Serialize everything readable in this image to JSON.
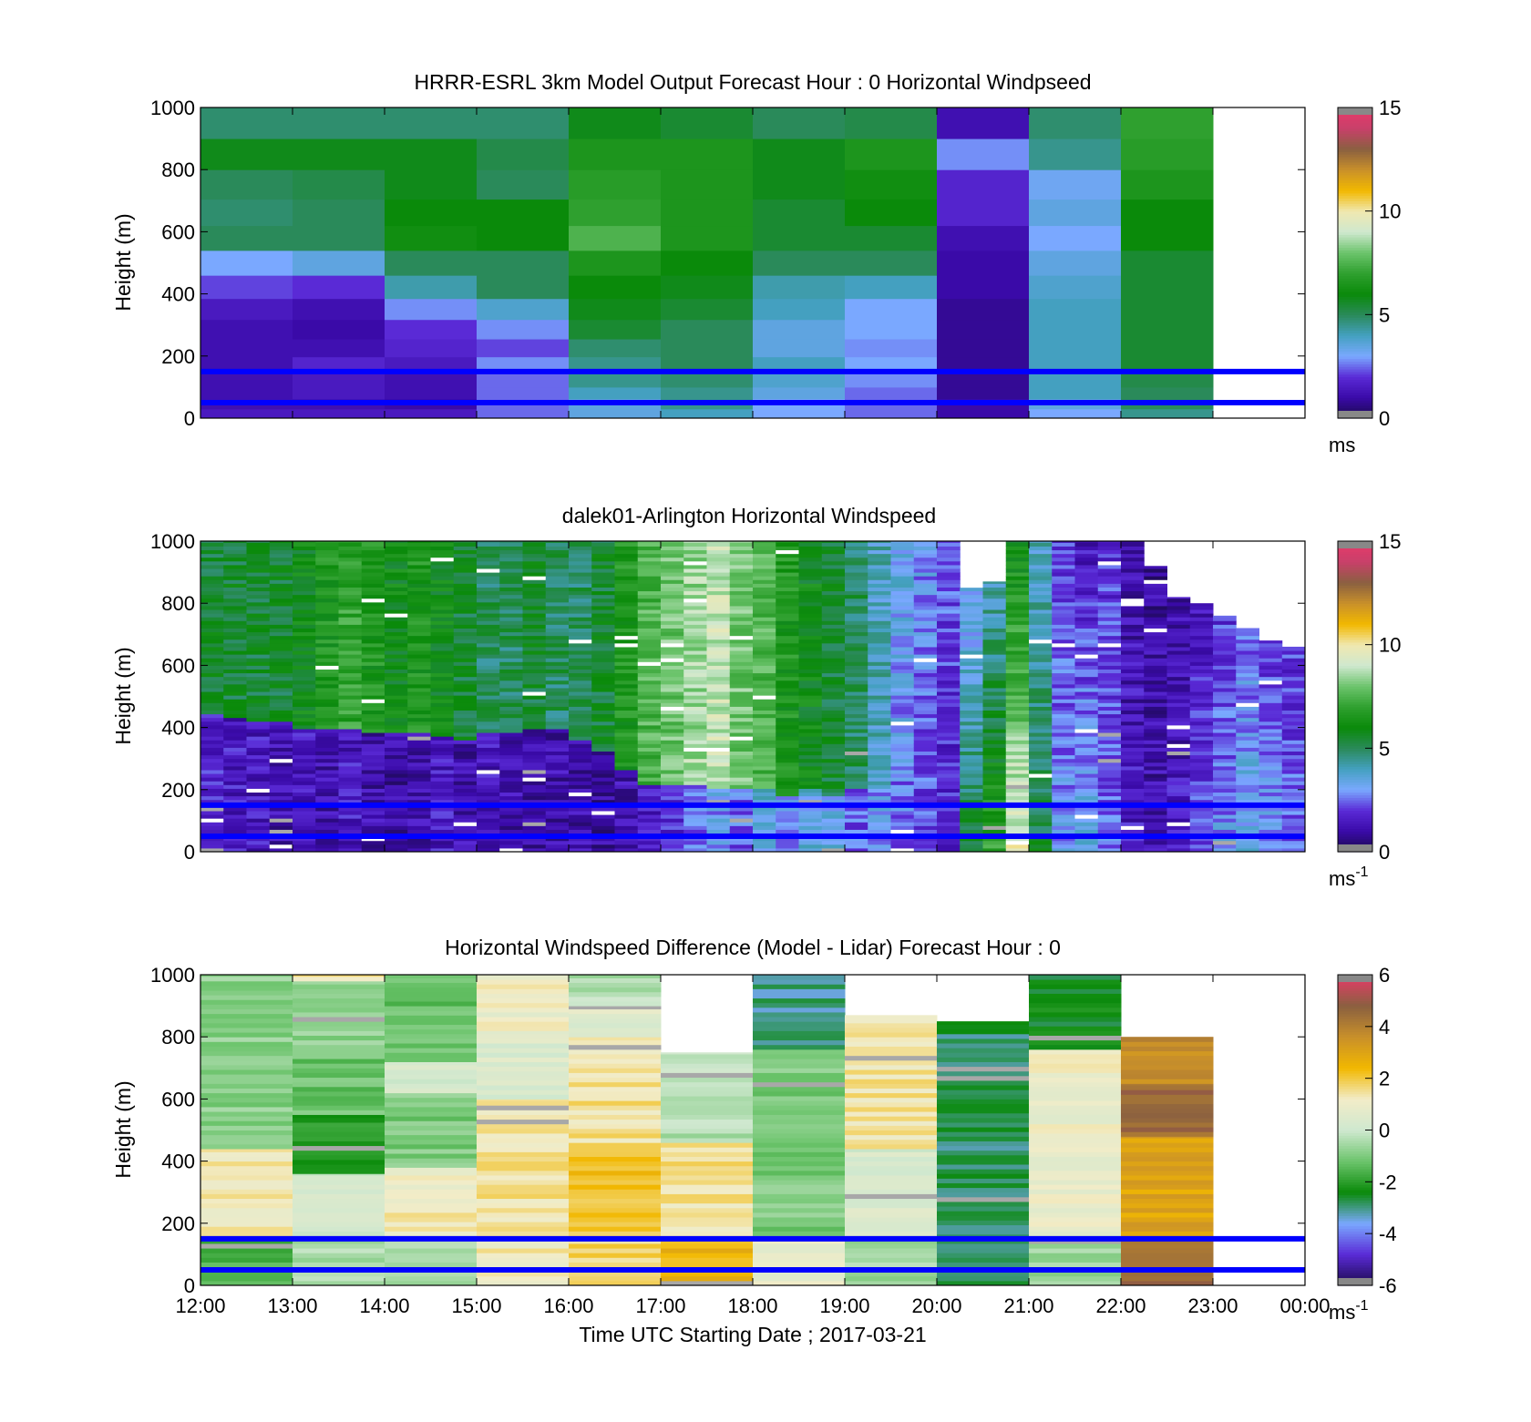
{
  "colors": {
    "wind_ramp": [
      "#1a0a4a",
      "#3a0aa8",
      "#5a2ad6",
      "#7aa8ff",
      "#44a0c0",
      "#2a8a5a",
      "#0a8a0a",
      "#2fa02f",
      "#6cc46c",
      "#cfe8cf",
      "#f0e8b0",
      "#f2b800",
      "#c9902a",
      "#8a6040",
      "#c8406a",
      "#e83a6a"
    ],
    "diff_ramp": [
      "#1a0a4a",
      "#5a2ad6",
      "#7aa8ff",
      "#0a8a0a",
      "#6cc46c",
      "#cfe8cf",
      "#f2ecc8",
      "#f2b800",
      "#c9902a",
      "#8a6040",
      "#e83a6a"
    ],
    "overlay_lines": "#0000ff",
    "nan_gray": "#a8a8a8"
  },
  "time_ticks": [
    "12:00",
    "13:00",
    "14:00",
    "15:00",
    "16:00",
    "17:00",
    "18:00",
    "19:00",
    "20:00",
    "21:00",
    "22:00",
    "23:00",
    "00:00"
  ],
  "x_label": "Time UTC  Starting Date ; 2017-03-21",
  "chart_data": [
    {
      "type": "heatmap",
      "title": "HRRR-ESRL 3km Model Output   Forecast Hour : 0 Horizontal Windpseed",
      "ylabel": "Height (m)",
      "ylim": [
        0,
        1000
      ],
      "yticks": [
        "0",
        "200",
        "400",
        "600",
        "800",
        "1000"
      ],
      "colorbar": {
        "clim": [
          0,
          15
        ],
        "ticks": [
          "0",
          "5",
          "10",
          "15"
        ],
        "unit": "ms"
      },
      "blue_lines_m": [
        50,
        150
      ],
      "heights_m": [
        15,
        45,
        80,
        120,
        170,
        225,
        285,
        350,
        420,
        500,
        580,
        660,
        750,
        850,
        950
      ],
      "hours": [
        "12:00",
        "13:00",
        "14:00",
        "15:00",
        "16:00",
        "17:00",
        "18:00",
        "19:00",
        "20:00",
        "21:00",
        "22:00"
      ],
      "values": [
        [
          1.5,
          1.5,
          1.5,
          2.5,
          3.5,
          4.0,
          3.0,
          2.5,
          1.0,
          3.0,
          4.5
        ],
        [
          1.2,
          1.2,
          1.0,
          2.5,
          3.5,
          4.5,
          3.0,
          2.5,
          1.0,
          3.5,
          5.0
        ],
        [
          1.2,
          1.5,
          1.2,
          2.5,
          4.0,
          4.5,
          3.5,
          2.5,
          0.8,
          4.0,
          5.0
        ],
        [
          1.2,
          1.5,
          1.2,
          2.5,
          4.5,
          4.8,
          3.8,
          2.8,
          0.8,
          4.0,
          5.2
        ],
        [
          1.2,
          1.8,
          1.5,
          2.8,
          4.5,
          5.0,
          4.0,
          3.0,
          0.8,
          4.0,
          5.5
        ],
        [
          1.2,
          1.2,
          1.8,
          2.2,
          4.8,
          5.0,
          3.5,
          2.8,
          0.8,
          4.0,
          5.5
        ],
        [
          1.2,
          1.0,
          2.0,
          2.8,
          5.5,
          5.0,
          3.5,
          3.0,
          0.8,
          4.0,
          5.5
        ],
        [
          1.5,
          1.2,
          2.8,
          3.8,
          5.8,
          5.5,
          4.0,
          3.0,
          0.8,
          4.0,
          5.5
        ],
        [
          2.2,
          2.0,
          4.2,
          5.0,
          6.0,
          5.8,
          4.2,
          4.0,
          1.0,
          3.8,
          5.5
        ],
        [
          3.0,
          3.5,
          5.0,
          5.0,
          6.5,
          6.0,
          5.0,
          5.0,
          1.0,
          3.5,
          5.5
        ],
        [
          5.0,
          5.0,
          6.2,
          6.0,
          7.5,
          6.5,
          5.5,
          5.5,
          1.2,
          3.0,
          6.0
        ],
        [
          4.8,
          5.0,
          6.0,
          6.0,
          7.0,
          6.5,
          5.5,
          6.0,
          1.8,
          3.5,
          6.0
        ],
        [
          5.0,
          5.2,
          5.8,
          5.0,
          6.8,
          6.5,
          5.8,
          6.2,
          1.8,
          3.2,
          6.5
        ],
        [
          5.8,
          5.8,
          5.8,
          5.2,
          6.5,
          6.5,
          5.8,
          6.5,
          2.8,
          4.5,
          6.8
        ],
        [
          4.8,
          4.8,
          4.8,
          4.8,
          5.8,
          5.5,
          5.0,
          5.2,
          1.2,
          4.8,
          7.0
        ]
      ]
    },
    {
      "type": "heatmap",
      "title": "dalek01-Arlington  Horizontal Windspeed",
      "ylabel": "Height (m)",
      "ylim": [
        0,
        1000
      ],
      "yticks": [
        "0",
        "200",
        "400",
        "600",
        "800",
        "1000"
      ],
      "colorbar": {
        "clim": [
          0,
          15
        ],
        "ticks": [
          "0",
          "5",
          "10",
          "15"
        ],
        "unit": "ms-1"
      },
      "blue_lines_m": [
        50,
        150
      ],
      "column_width_h": 0.25,
      "start_hours": [
        12.0,
        12.25,
        12.5,
        12.75,
        13.0,
        13.25,
        13.5,
        13.75,
        14.0,
        14.25,
        14.5,
        14.75,
        15.0,
        15.25,
        15.5,
        15.75,
        16.0,
        16.25,
        16.5,
        16.75,
        17.0,
        17.25,
        17.5,
        17.75,
        18.0,
        18.25,
        18.5,
        18.75,
        19.0,
        19.25,
        19.5,
        19.75,
        20.0,
        20.25,
        20.5,
        20.75,
        21.0,
        21.25,
        21.5,
        21.75,
        22.0,
        22.25,
        22.5,
        22.75,
        23.0,
        23.25,
        23.5,
        23.75
      ],
      "top_m": [
        1000,
        1000,
        1000,
        1000,
        1000,
        1000,
        1000,
        1000,
        1000,
        1000,
        1000,
        1000,
        1000,
        1000,
        1000,
        1000,
        1000,
        1000,
        1000,
        1000,
        1000,
        1000,
        1000,
        1000,
        1000,
        1000,
        1000,
        1000,
        1000,
        1000,
        1000,
        1000,
        1000,
        850,
        870,
        1000,
        1000,
        1000,
        1000,
        1000,
        1000,
        920,
        820,
        800,
        760,
        720,
        680,
        660
      ],
      "ground_speed": [
        1.8,
        1.5,
        1.5,
        1.2,
        1.5,
        1.2,
        1.5,
        1.2,
        1.0,
        1.2,
        1.5,
        1.2,
        1.5,
        1.2,
        1.0,
        1.2,
        1.2,
        1.0,
        1.2,
        1.5,
        2.0,
        2.5,
        3.0,
        2.5,
        3.5,
        3.0,
        3.5,
        3.5,
        2.5,
        3.0,
        2.5,
        2.0,
        1.5,
        5.5,
        7.0,
        9.5,
        5.5,
        3.0,
        3.5,
        2.5,
        1.5,
        1.2,
        1.5,
        2.5,
        3.0,
        3.5,
        3.0,
        2.5
      ],
      "upper_speed": [
        5.5,
        5.5,
        5.5,
        5.5,
        6.0,
        6.5,
        7.0,
        6.5,
        6.0,
        6.5,
        6.0,
        5.5,
        5.0,
        5.0,
        5.5,
        5.0,
        5.0,
        5.5,
        6.5,
        7.5,
        8.0,
        8.5,
        9.0,
        8.0,
        7.5,
        6.5,
        6.0,
        5.5,
        5.0,
        4.0,
        3.5,
        3.0,
        2.5,
        3.0,
        4.0,
        6.0,
        4.0,
        2.0,
        1.5,
        2.0,
        1.2,
        1.0,
        1.2,
        1.5,
        2.0,
        2.5,
        2.0,
        2.0
      ],
      "transition_m": [
        450,
        430,
        420,
        420,
        400,
        400,
        400,
        390,
        380,
        380,
        370,
        360,
        380,
        380,
        400,
        400,
        360,
        320,
        260,
        220,
        220,
        220,
        200,
        200,
        200,
        180,
        200,
        180,
        200,
        200,
        0,
        0,
        0,
        0,
        0,
        0,
        0,
        0,
        0,
        0,
        0,
        0,
        0,
        0,
        0,
        0,
        0,
        0
      ]
    },
    {
      "type": "heatmap",
      "title": "Horizontal Windspeed Difference (Model - Lidar) Forecast Hour : 0",
      "ylabel": "Height (m)",
      "xlabel": "Time UTC  Starting Date ; 2017-03-21",
      "ylim": [
        0,
        1000
      ],
      "yticks": [
        "0",
        "200",
        "400",
        "600",
        "800",
        "1000"
      ],
      "colorbar": {
        "clim": [
          -6,
          6
        ],
        "ticks": [
          "-6",
          "-4",
          "-2",
          "0",
          "2",
          "4",
          "6"
        ],
        "unit": "ms-1"
      },
      "blue_lines_m": [
        50,
        150
      ],
      "hours": [
        "12:00",
        "13:00",
        "14:00",
        "15:00",
        "16:00",
        "17:00",
        "18:00",
        "19:00",
        "20:00",
        "21:00",
        "22:00"
      ],
      "columns": [
        {
          "segments": [
            [
              0,
              160,
              -1.5
            ],
            [
              160,
              440,
              1.2
            ],
            [
              440,
              1000,
              -0.8
            ]
          ]
        },
        {
          "segments": [
            [
              0,
              160,
              -0.4
            ],
            [
              160,
              360,
              0.2
            ],
            [
              360,
              550,
              -2.0
            ],
            [
              550,
              760,
              -1.2
            ],
            [
              760,
              980,
              -0.8
            ],
            [
              980,
              1000,
              1.5
            ]
          ]
        },
        {
          "segments": [
            [
              0,
              160,
              -0.6
            ],
            [
              160,
              380,
              1.2
            ],
            [
              380,
              620,
              -1.0
            ],
            [
              620,
              720,
              0.2
            ],
            [
              720,
              1000,
              -1.2
            ]
          ]
        },
        {
          "segments": [
            [
              0,
              160,
              1.2
            ],
            [
              160,
              600,
              1.5
            ],
            [
              600,
              820,
              0.4
            ],
            [
              820,
              1000,
              1.0
            ]
          ]
        },
        {
          "segments": [
            [
              0,
              160,
              1.8
            ],
            [
              160,
              460,
              2.2
            ],
            [
              460,
              800,
              1.5
            ],
            [
              800,
              900,
              0.6
            ],
            [
              900,
              1000,
              -0.3
            ]
          ]
        },
        {
          "segments": [
            [
              0,
              160,
              2.6
            ],
            [
              160,
              460,
              1.5
            ],
            [
              460,
              750,
              -0.3
            ]
          ]
        },
        {
          "segments": [
            [
              0,
              160,
              0.8
            ],
            [
              160,
              760,
              -1.0
            ],
            [
              760,
              1000,
              -3.0
            ]
          ]
        },
        {
          "segments": [
            [
              0,
              160,
              -0.5
            ],
            [
              160,
              440,
              0.3
            ],
            [
              440,
              870,
              1.4
            ]
          ]
        },
        {
          "segments": [
            [
              0,
              850,
              -2.8
            ]
          ]
        },
        {
          "segments": [
            [
              0,
              160,
              -0.5
            ],
            [
              160,
              760,
              1.0
            ],
            [
              760,
              1000,
              -2.4
            ]
          ]
        },
        {
          "segments": [
            [
              0,
              160,
              4.5
            ],
            [
              160,
              480,
              3.0
            ],
            [
              480,
              650,
              4.5
            ],
            [
              650,
              800,
              3.8
            ]
          ]
        }
      ]
    }
  ]
}
